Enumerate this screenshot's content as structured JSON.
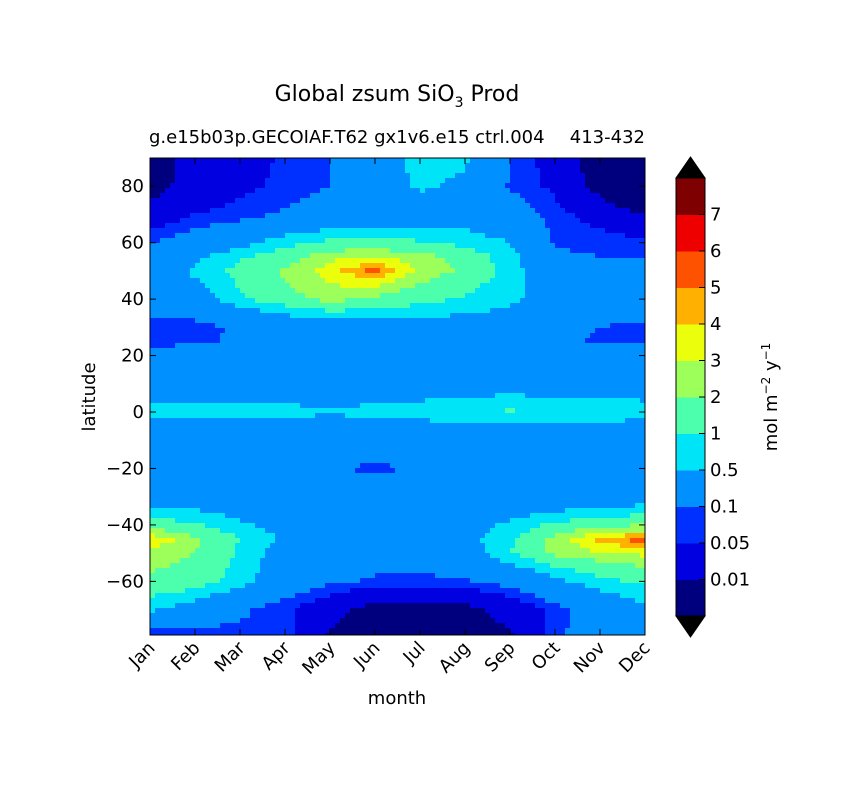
{
  "chart_data": {
    "type": "heatmap",
    "subtype": "filled-contour",
    "title": "Global zsum SiO",
    "title_subscript": "3",
    "title_suffix": " Prod",
    "subtitle": "g.e15b03p.GECOIAF.T62 gx1v6.e15 ctrl.004",
    "subtitle_overlap": "413-432",
    "xlabel": "month",
    "ylabel": "latitude",
    "x_categories": [
      "Jan",
      "Feb",
      "Mar",
      "Apr",
      "May",
      "Jun",
      "Jul",
      "Aug",
      "Sep",
      "Oct",
      "Nov",
      "Dec"
    ],
    "xlim": [
      0,
      11
    ],
    "ylim": [
      -79,
      90
    ],
    "yticks": [
      80,
      60,
      40,
      20,
      0,
      -20,
      -40,
      -60
    ],
    "ytick_labels": [
      "80",
      "60",
      "40",
      "20",
      "0",
      "−20",
      "−40",
      "−60"
    ],
    "colorbar": {
      "label_parts": [
        "mol m",
        "−2",
        " y",
        "−1"
      ],
      "levels": [
        0,
        0.01,
        0.05,
        0.1,
        0.5,
        1,
        2,
        3,
        4,
        5,
        6,
        7,
        8
      ],
      "tick_labels": [
        "0.01",
        "0.05",
        "0.1",
        "0.5",
        "1",
        "2",
        "3",
        "4",
        "5",
        "6",
        "7"
      ],
      "colors": [
        "#00007f",
        "#0000e0",
        "#0030ff",
        "#0090ff",
        "#00e4f8",
        "#4bffac",
        "#9dff5a",
        "#ebff0c",
        "#ffb000",
        "#ff5200",
        "#ef0000",
        "#7f0000"
      ],
      "extend_low_color": "#000000",
      "extend_high_color": "#000000"
    },
    "latitudes": [
      -79,
      -70,
      -60,
      -50,
      -45,
      -40,
      -30,
      -20,
      -10,
      0,
      10,
      20,
      25,
      30,
      40,
      50,
      55,
      60,
      70,
      80,
      90
    ],
    "values": [
      [
        0.05,
        0.06,
        0.08,
        0.08,
        0.008,
        0.003,
        0.003,
        0.004,
        0.008,
        0.08,
        0.2,
        0.15
      ],
      [
        0.6,
        0.3,
        0.12,
        0.06,
        0.02,
        0.005,
        0.005,
        0.006,
        0.02,
        0.07,
        0.2,
        0.4
      ],
      [
        1.8,
        1.6,
        0.7,
        0.25,
        0.12,
        0.09,
        0.08,
        0.09,
        0.15,
        0.4,
        0.8,
        1.2
      ],
      [
        2.5,
        2.0,
        0.9,
        0.3,
        0.2,
        0.15,
        0.15,
        0.3,
        1.0,
        2.3,
        3.0,
        3.3
      ],
      [
        4.2,
        2.3,
        1.0,
        0.45,
        0.25,
        0.2,
        0.2,
        0.35,
        0.9,
        2.5,
        4.5,
        5.6
      ],
      [
        1.5,
        1.1,
        0.6,
        0.35,
        0.3,
        0.25,
        0.25,
        0.3,
        0.6,
        1.2,
        1.8,
        2.0
      ],
      [
        0.3,
        0.25,
        0.2,
        0.2,
        0.2,
        0.2,
        0.2,
        0.2,
        0.2,
        0.2,
        0.2,
        0.3
      ],
      [
        0.2,
        0.2,
        0.2,
        0.2,
        0.12,
        0.08,
        0.12,
        0.2,
        0.2,
        0.2,
        0.2,
        0.2
      ],
      [
        0.2,
        0.2,
        0.2,
        0.2,
        0.2,
        0.2,
        0.2,
        0.2,
        0.2,
        0.2,
        0.2,
        0.2
      ],
      [
        0.6,
        0.65,
        0.6,
        0.6,
        0.55,
        0.6,
        0.7,
        0.9,
        1.1,
        0.9,
        0.8,
        0.7
      ],
      [
        0.3,
        0.3,
        0.3,
        0.3,
        0.3,
        0.3,
        0.3,
        0.3,
        0.3,
        0.3,
        0.3,
        0.3
      ],
      [
        0.15,
        0.2,
        0.3,
        0.3,
        0.3,
        0.3,
        0.3,
        0.3,
        0.3,
        0.2,
        0.2,
        0.2
      ],
      [
        0.08,
        0.08,
        0.12,
        0.2,
        0.3,
        0.3,
        0.3,
        0.3,
        0.3,
        0.15,
        0.08,
        0.08
      ],
      [
        0.07,
        0.07,
        0.12,
        0.2,
        0.3,
        0.3,
        0.3,
        0.3,
        0.3,
        0.2,
        0.1,
        0.08
      ],
      [
        0.2,
        0.3,
        0.9,
        1.6,
        2.5,
        1.8,
        1.3,
        0.9,
        0.6,
        0.3,
        0.2,
        0.2
      ],
      [
        0.2,
        0.6,
        1.3,
        2.2,
        3.6,
        5.5,
        2.8,
        1.8,
        0.8,
        0.2,
        0.15,
        0.15
      ],
      [
        0.15,
        0.4,
        0.9,
        1.5,
        2.7,
        3.2,
        2.4,
        1.6,
        0.7,
        0.12,
        0.1,
        0.1
      ],
      [
        0.1,
        0.2,
        0.35,
        0.8,
        1.2,
        1.4,
        1.1,
        0.8,
        0.5,
        0.09,
        0.08,
        0.07
      ],
      [
        0.02,
        0.05,
        0.07,
        0.12,
        0.2,
        0.2,
        0.25,
        0.3,
        0.2,
        0.07,
        0.03,
        0.01
      ],
      [
        0.005,
        0.02,
        0.04,
        0.06,
        0.1,
        0.2,
        0.6,
        0.4,
        0.09,
        0.04,
        0.005,
        0.0005
      ],
      [
        0.004,
        0.02,
        0.03,
        0.06,
        0.1,
        0.3,
        0.7,
        0.6,
        0.1,
        0.03,
        0.004,
        0.0005
      ]
    ]
  }
}
